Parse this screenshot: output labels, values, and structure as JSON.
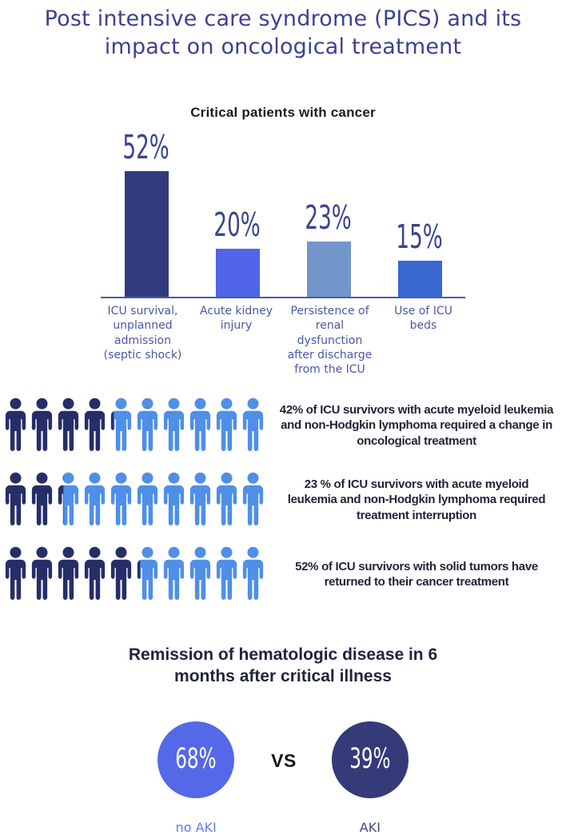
{
  "title": "Post intensive care syndrome (PICS) and its\nimpact on oncological treatment",
  "chart_data": {
    "type": "bar",
    "title": "Critical patients with cancer",
    "categories": [
      "ICU survival,\nunplanned\nadmission\n(septic shock)",
      "Acute kidney\ninjury",
      "Persistence of\nrenal\ndysfunction\nafter discharge\nfrom the ICU",
      "Use of ICU\nbeds"
    ],
    "values": [
      52,
      20,
      23,
      15
    ],
    "value_labels": [
      "52%",
      "20%",
      "23%",
      "15%"
    ],
    "unit": "%",
    "bar_colors": [
      "#333a7d",
      "#5165e8",
      "#7295cb",
      "#3767cf"
    ],
    "axis_color": "#4a5aa8",
    "ylim": [
      0,
      60
    ],
    "grid": false,
    "legend": false
  },
  "pictogram": {
    "icons_per_row": 10,
    "filled_color": "#262e68",
    "empty_color": "#4f8fe8",
    "rows": [
      {
        "percent": 42,
        "text": "42% of ICU survivors with acute myeloid leukemia\nand non-Hodgkin lymphoma required a change in\noncological treatment"
      },
      {
        "percent": 23,
        "text": "23 % of ICU survivors with acute myeloid\nleukemia and non-Hodgkin lymphoma required\ntreatment interruption"
      },
      {
        "percent": 52,
        "text": "52% of ICU survivors with solid tumors have\nreturned to their cancer treatment"
      }
    ]
  },
  "remission": {
    "title": "Remission of hematologic disease in 6\nmonths after critical illness",
    "vs_label": "VS",
    "groups": [
      {
        "value": "68%",
        "label": "no AKI",
        "circle_color": "#5568e8",
        "label_color": "#6b79e6"
      },
      {
        "value": "39%",
        "label": "AKI",
        "circle_color": "#343b78",
        "label_color": "#454c80"
      }
    ]
  },
  "colors": {
    "title_text": "#3c4193",
    "chart_value_text": "#3a4490",
    "axis_label_text": "#4a58a8",
    "stat_text": "#1f2335",
    "background": "#ffffff"
  }
}
